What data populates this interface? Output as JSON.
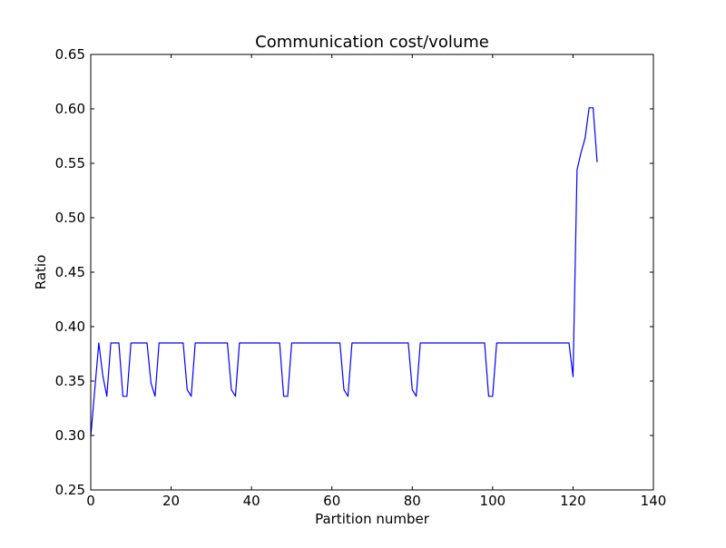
{
  "chart_data": {
    "type": "line",
    "title": "Communication cost/volume",
    "xlabel": "Partition number",
    "ylabel": "Ratio",
    "xlim": [
      0,
      140
    ],
    "ylim": [
      0.25,
      0.65
    ],
    "xticks": [
      0,
      20,
      40,
      60,
      80,
      100,
      120,
      140
    ],
    "xtick_labels": [
      "0",
      "20",
      "40",
      "60",
      "80",
      "100",
      "120",
      "140"
    ],
    "yticks": [
      0.25,
      0.3,
      0.35,
      0.4,
      0.45,
      0.5,
      0.55,
      0.6,
      0.65
    ],
    "ytick_labels": [
      "0.25",
      "0.30",
      "0.35",
      "0.40",
      "0.45",
      "0.50",
      "0.55",
      "0.60",
      "0.65"
    ],
    "grid": false,
    "legend": "none",
    "series": [
      {
        "color": "#0000ff",
        "x": [
          0,
          1,
          2,
          3,
          4,
          5,
          6,
          7,
          8,
          9,
          10,
          11,
          12,
          13,
          14,
          15,
          16,
          17,
          18,
          19,
          20,
          21,
          22,
          23,
          24,
          25,
          26,
          27,
          28,
          29,
          30,
          31,
          32,
          33,
          34,
          35,
          36,
          37,
          38,
          39,
          40,
          41,
          42,
          43,
          44,
          45,
          46,
          47,
          48,
          49,
          50,
          51,
          52,
          53,
          54,
          55,
          56,
          57,
          58,
          59,
          60,
          61,
          62,
          63,
          64,
          65,
          66,
          67,
          68,
          69,
          70,
          71,
          72,
          73,
          74,
          75,
          76,
          77,
          78,
          79,
          80,
          81,
          82,
          83,
          84,
          85,
          86,
          87,
          88,
          89,
          90,
          91,
          92,
          93,
          94,
          95,
          96,
          97,
          98,
          99,
          100,
          101,
          102,
          103,
          104,
          105,
          106,
          107,
          108,
          109,
          110,
          111,
          112,
          113,
          114,
          115,
          116,
          117,
          118,
          119,
          120,
          121,
          122,
          123,
          124,
          125,
          126
        ],
        "y": [
          0.299,
          0.342,
          0.385,
          0.355,
          0.336,
          0.385,
          0.385,
          0.385,
          0.336,
          0.336,
          0.385,
          0.385,
          0.385,
          0.385,
          0.385,
          0.348,
          0.336,
          0.385,
          0.385,
          0.385,
          0.385,
          0.385,
          0.385,
          0.385,
          0.342,
          0.336,
          0.385,
          0.385,
          0.385,
          0.385,
          0.385,
          0.385,
          0.385,
          0.385,
          0.385,
          0.342,
          0.336,
          0.385,
          0.385,
          0.385,
          0.385,
          0.385,
          0.385,
          0.385,
          0.385,
          0.385,
          0.385,
          0.385,
          0.336,
          0.336,
          0.385,
          0.385,
          0.385,
          0.385,
          0.385,
          0.385,
          0.385,
          0.385,
          0.385,
          0.385,
          0.385,
          0.385,
          0.385,
          0.342,
          0.336,
          0.385,
          0.385,
          0.385,
          0.385,
          0.385,
          0.385,
          0.385,
          0.385,
          0.385,
          0.385,
          0.385,
          0.385,
          0.385,
          0.385,
          0.385,
          0.342,
          0.336,
          0.385,
          0.385,
          0.385,
          0.385,
          0.385,
          0.385,
          0.385,
          0.385,
          0.385,
          0.385,
          0.385,
          0.385,
          0.385,
          0.385,
          0.385,
          0.385,
          0.385,
          0.336,
          0.336,
          0.385,
          0.385,
          0.385,
          0.385,
          0.385,
          0.385,
          0.385,
          0.385,
          0.385,
          0.385,
          0.385,
          0.385,
          0.385,
          0.385,
          0.385,
          0.385,
          0.385,
          0.385,
          0.385,
          0.354,
          0.544,
          0.56,
          0.573,
          0.601,
          0.601,
          0.551
        ]
      }
    ]
  }
}
